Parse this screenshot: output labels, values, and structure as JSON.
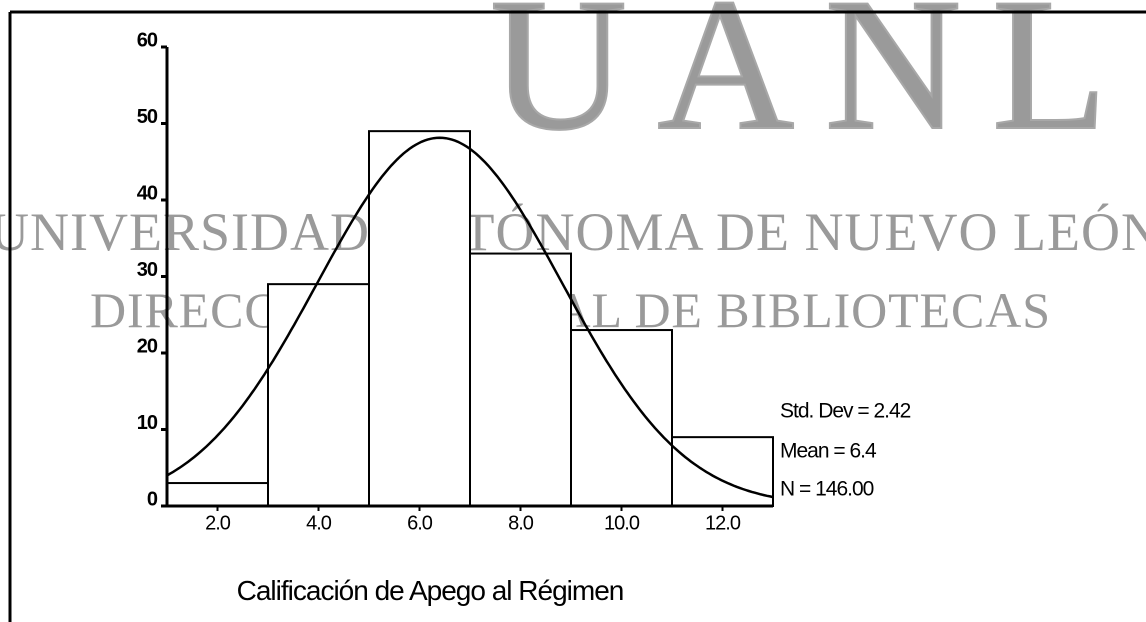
{
  "chart_data": {
    "type": "histogram",
    "x_label": "Calificación de Apego al Régimen",
    "bins": [
      1,
      3,
      5,
      7,
      9,
      11,
      13
    ],
    "values": [
      3,
      29,
      49,
      33,
      23,
      9
    ],
    "color": "#ffffff",
    "xlim": [
      1,
      13
    ],
    "xticks": [
      {
        "value": 2,
        "label": "2.0"
      },
      {
        "value": 4,
        "label": "4.0"
      },
      {
        "value": 6,
        "label": "6.0"
      },
      {
        "value": 8,
        "label": "8.0"
      },
      {
        "value": 10,
        "label": "10.0"
      },
      {
        "value": 12,
        "label": "12.0"
      }
    ],
    "ylim": [
      0,
      60
    ],
    "yticks": [
      0,
      10,
      20,
      30,
      40,
      50,
      60
    ],
    "stats": {
      "std_dev": {
        "value": 2.42,
        "label": "Std. Dev = 2.42"
      },
      "mean": {
        "value": 6.4,
        "label": "Mean = 6.4"
      },
      "n": {
        "value": 146,
        "label": "N = 146.00"
      }
    }
  },
  "watermark": {
    "logo": "UANL",
    "line1": "UNIVERSIDAD AUTÓNOMA DE NUEVO LEÓN",
    "line2": "DIRECCIÓN GENERAL DE BIBLIOTECAS"
  }
}
